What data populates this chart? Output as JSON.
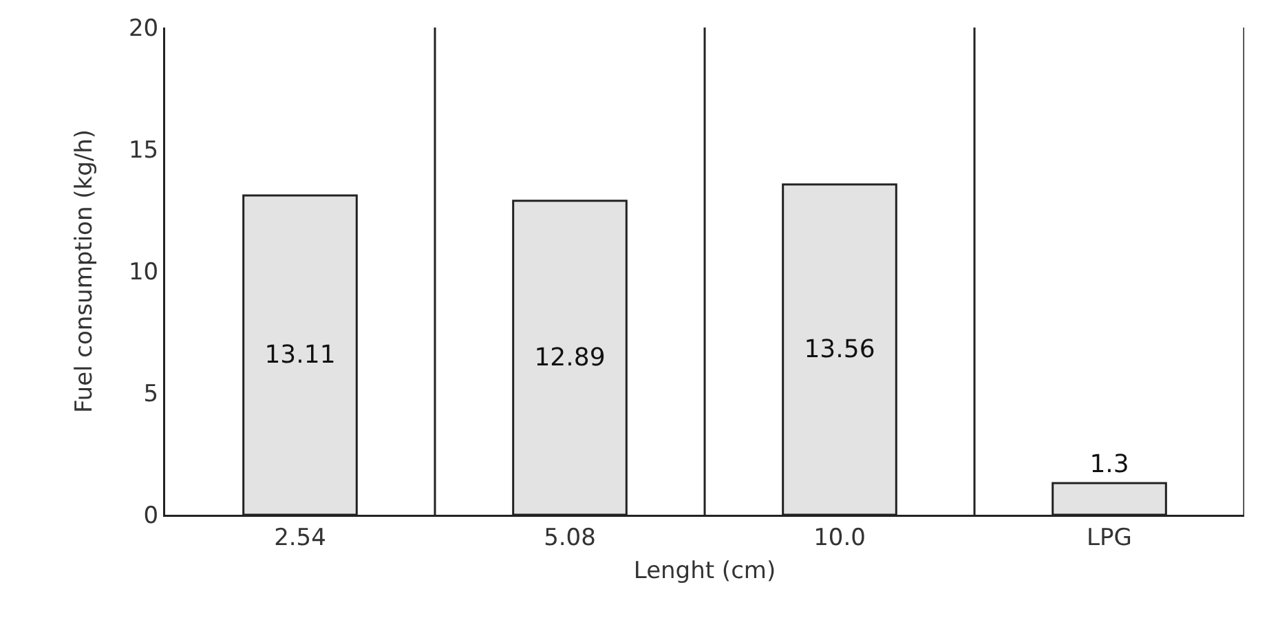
{
  "chart_data": {
    "type": "bar",
    "xlabel": "Lenght (cm)",
    "ylabel": "Fuel consumption (kg/h)",
    "categories": [
      "2.54",
      "5.08",
      "10.0",
      "LPG"
    ],
    "values": [
      13.11,
      12.89,
      13.56,
      1.3
    ],
    "color": "#e3e3e3",
    "ylim": [
      0,
      20
    ],
    "yticks": [
      0,
      5,
      10,
      15,
      20
    ],
    "grid": "x",
    "data_labels": true
  }
}
